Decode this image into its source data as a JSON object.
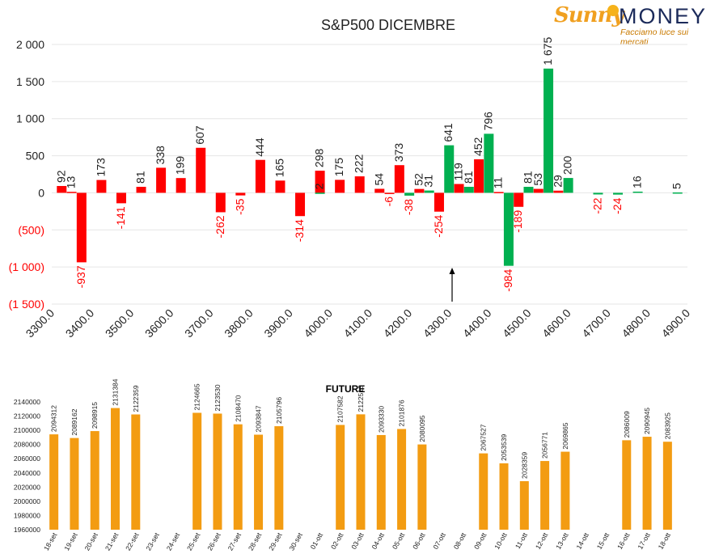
{
  "logo": {
    "brand_part1": "Sunny",
    "brand_part2": "MONEY",
    "tagline": "Facciamo luce sui mercati"
  },
  "colors": {
    "positive": "#00b050",
    "negative": "#ff0000",
    "future_bar": "#f39c12",
    "grid": "#e6e6e6"
  },
  "chart_data": [
    {
      "type": "bar",
      "title": "S&P500 DICEMBRE",
      "xlabel": "",
      "ylabel": "",
      "ylim": [
        -1500,
        2000
      ],
      "yticks": [
        2000,
        1500,
        1000,
        500,
        0,
        -500,
        -1000,
        -1500
      ],
      "ytick_labels": [
        "2 000",
        "1 500",
        "1 000",
        "500",
        "0",
        "(500)",
        "(1 000)",
        "(1 500)"
      ],
      "xlim": [
        3300,
        4900
      ],
      "xticks": [
        3300,
        3400,
        3500,
        3600,
        3700,
        3800,
        3900,
        4000,
        4100,
        4200,
        4300,
        4400,
        4500,
        4600,
        4700,
        4800,
        4900
      ],
      "xtick_labels": [
        "3300.0",
        "3400.0",
        "3500.0",
        "3600.0",
        "3700.0",
        "3800.0",
        "3900.0",
        "4000.0",
        "4100.0",
        "4200.0",
        "4300.0",
        "4400.0",
        "4500.0",
        "4600.0",
        "4700.0",
        "4800.0",
        "4900.0"
      ],
      "grid": true,
      "annotation": "arrow pointing up at about 4290",
      "series": [
        {
          "color": "red",
          "points": [
            {
              "x": 3325,
              "y": 92,
              "label": "92"
            },
            {
              "x": 3350,
              "y": 13,
              "label": "13"
            },
            {
              "x": 3375,
              "y": -937,
              "label": "-937"
            },
            {
              "x": 3425,
              "y": 173,
              "label": "173"
            },
            {
              "x": 3475,
              "y": -141,
              "label": "-141"
            },
            {
              "x": 3525,
              "y": 81,
              "label": "81"
            },
            {
              "x": 3575,
              "y": 338,
              "label": "338"
            },
            {
              "x": 3625,
              "y": 199,
              "label": "199"
            },
            {
              "x": 3675,
              "y": 607,
              "label": "607"
            },
            {
              "x": 3725,
              "y": -262,
              "label": "-262"
            },
            {
              "x": 3775,
              "y": -35,
              "label": "-35"
            },
            {
              "x": 3825,
              "y": 444,
              "label": "444"
            },
            {
              "x": 3875,
              "y": 165,
              "label": "165"
            },
            {
              "x": 3925,
              "y": -314,
              "label": "-314"
            },
            {
              "x": 3975,
              "y": 298,
              "label": "298"
            },
            {
              "x": 4025,
              "y": 175,
              "label": "175"
            },
            {
              "x": 4075,
              "y": 222,
              "label": "222"
            },
            {
              "x": 4125,
              "y": 54,
              "label": "54"
            },
            {
              "x": 4150,
              "y": -6,
              "label": "-6"
            },
            {
              "x": 4175,
              "y": 373,
              "label": "373"
            },
            {
              "x": 4225,
              "y": 52,
              "label": "52"
            },
            {
              "x": 4275,
              "y": -254,
              "label": "-254"
            },
            {
              "x": 4325,
              "y": 119,
              "label": "119"
            },
            {
              "x": 4375,
              "y": 452,
              "label": "452"
            },
            {
              "x": 4425,
              "y": 11,
              "label": "11"
            },
            {
              "x": 4475,
              "y": -189,
              "label": "-189"
            },
            {
              "x": 4525,
              "y": 53,
              "label": "53"
            },
            {
              "x": 4575,
              "y": 29,
              "label": "29"
            }
          ]
        },
        {
          "color": "green",
          "points": [
            {
              "x": 3975,
              "y": 2,
              "label": "2"
            },
            {
              "x": 4200,
              "y": -38,
              "label": "-38"
            },
            {
              "x": 4250,
              "y": 31,
              "label": "31"
            },
            {
              "x": 4300,
              "y": 641,
              "label": "641"
            },
            {
              "x": 4350,
              "y": 81,
              "label": "81"
            },
            {
              "x": 4400,
              "y": 796,
              "label": "796"
            },
            {
              "x": 4450,
              "y": -984,
              "label": "-984"
            },
            {
              "x": 4500,
              "y": 81,
              "label": "81"
            },
            {
              "x": 4550,
              "y": 1675,
              "label": "1 675"
            },
            {
              "x": 4600,
              "y": 200,
              "label": "200"
            },
            {
              "x": 4675,
              "y": -22,
              "label": "-22"
            },
            {
              "x": 4725,
              "y": -24,
              "label": "-24"
            },
            {
              "x": 4775,
              "y": 16,
              "label": "16"
            },
            {
              "x": 4875,
              "y": 5,
              "label": "5"
            }
          ]
        }
      ]
    },
    {
      "type": "bar",
      "title": "FUTURE",
      "xlabel": "",
      "ylabel": "",
      "ylim": [
        1960000,
        2140000
      ],
      "yticks": [
        2140000,
        2120000,
        2100000,
        2080000,
        2060000,
        2040000,
        2020000,
        2000000,
        1980000,
        1960000
      ],
      "ytick_labels": [
        "2140000",
        "2120000",
        "2100000",
        "2080000",
        "2060000",
        "2040000",
        "2020000",
        "2000000",
        "1980000",
        "1960000"
      ],
      "grid": false,
      "categories": [
        "18-set",
        "19-set",
        "20-set",
        "21-set",
        "22-set",
        "23-set",
        "24-set",
        "25-set",
        "26-set",
        "27-set",
        "28-set",
        "29-set",
        "30-set",
        "01-ott",
        "02-ott",
        "03-ott",
        "04-ott",
        "05-ott",
        "06-ott",
        "07-ott",
        "08-ott",
        "09-ott",
        "10-ott",
        "11-ott",
        "12-ott",
        "13-ott",
        "14-ott",
        "15-ott",
        "16-ott",
        "17-ott",
        "18-ott"
      ],
      "values": [
        2094312,
        2089162,
        2098915,
        2131384,
        2122359,
        null,
        null,
        2124665,
        2123530,
        2108470,
        2093847,
        2105796,
        null,
        null,
        2107582,
        2122513,
        2093330,
        2101876,
        2080095,
        null,
        null,
        2067527,
        2053539,
        2028359,
        2056771,
        2069865,
        null,
        null,
        2086009,
        2090945,
        2083925
      ],
      "value_labels": [
        "2094312",
        "2089162",
        "2098915",
        "2131384",
        "2122359",
        "",
        "",
        "2124665",
        "2123530",
        "2108470",
        "2093847",
        "2105796",
        "",
        "",
        "2107582",
        "2122513",
        "2093330",
        "2101876",
        "2080095",
        "",
        "",
        "2067527",
        "2053539",
        "2028359",
        "2056771",
        "2069865",
        "",
        "",
        "2086009",
        "2090945",
        "2083925"
      ]
    }
  ]
}
